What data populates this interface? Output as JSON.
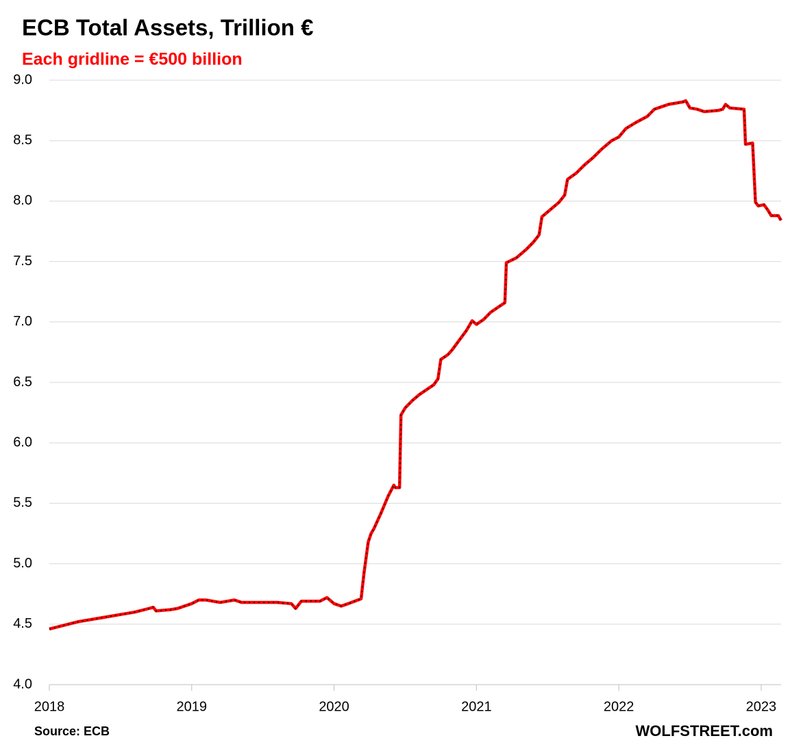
{
  "chart_data": {
    "type": "line",
    "title": "ECB Total Assets, Trillion €",
    "subtitle": "Each gridline = €500 billion",
    "source": "Source: ECB",
    "watermark": "WOLFSTREET.com",
    "x": [
      2018.0,
      2018.1,
      2018.2,
      2018.3,
      2018.4,
      2018.5,
      2018.6,
      2018.7,
      2018.73,
      2018.75,
      2018.85,
      2018.9,
      2019.0,
      2019.05,
      2019.1,
      2019.2,
      2019.3,
      2019.35,
      2019.5,
      2019.6,
      2019.7,
      2019.73,
      2019.77,
      2019.9,
      2019.95,
      2020.0,
      2020.05,
      2020.1,
      2020.19,
      2020.21,
      2020.24,
      2020.26,
      2020.28,
      2020.33,
      2020.38,
      2020.42,
      2020.43,
      2020.46,
      2020.47,
      2020.5,
      2020.55,
      2020.6,
      2020.7,
      2020.73,
      2020.75,
      2020.8,
      2020.83,
      2020.88,
      2020.93,
      2020.97,
      2021.0,
      2021.05,
      2021.1,
      2021.15,
      2021.2,
      2021.21,
      2021.28,
      2021.35,
      2021.4,
      2021.44,
      2021.46,
      2021.52,
      2021.58,
      2021.62,
      2021.64,
      2021.7,
      2021.76,
      2021.82,
      2021.88,
      2021.95,
      2022.0,
      2022.05,
      2022.12,
      2022.2,
      2022.25,
      2022.3,
      2022.35,
      2022.45,
      2022.47,
      2022.5,
      2022.55,
      2022.6,
      2022.7,
      2022.73,
      2022.75,
      2022.78,
      2022.88,
      2022.89,
      2022.94,
      2022.96,
      2022.98,
      2023.02,
      2023.05,
      2023.07,
      2023.12,
      2023.14
    ],
    "series": [
      {
        "color": "#ff0000",
        "values": [
          4.46,
          4.49,
          4.52,
          4.54,
          4.56,
          4.58,
          4.6,
          4.63,
          4.64,
          4.61,
          4.62,
          4.63,
          4.67,
          4.7,
          4.7,
          4.68,
          4.7,
          4.68,
          4.68,
          4.68,
          4.67,
          4.63,
          4.69,
          4.69,
          4.72,
          4.67,
          4.65,
          4.67,
          4.71,
          4.92,
          5.18,
          5.25,
          5.29,
          5.42,
          5.56,
          5.65,
          5.63,
          5.63,
          6.23,
          6.29,
          6.35,
          6.4,
          6.48,
          6.53,
          6.69,
          6.73,
          6.77,
          6.85,
          6.93,
          7.01,
          6.98,
          7.02,
          7.08,
          7.12,
          7.16,
          7.49,
          7.53,
          7.6,
          7.66,
          7.72,
          7.87,
          7.93,
          7.99,
          8.05,
          8.18,
          8.23,
          8.3,
          8.36,
          8.43,
          8.5,
          8.53,
          8.6,
          8.65,
          8.7,
          8.76,
          8.78,
          8.8,
          8.82,
          8.83,
          8.77,
          8.76,
          8.74,
          8.75,
          8.76,
          8.8,
          8.77,
          8.76,
          8.47,
          8.48,
          7.99,
          7.96,
          7.97,
          7.92,
          7.88,
          7.88,
          7.84
        ]
      }
    ],
    "xlim": [
      2018,
      2023.14
    ],
    "xticks": [
      2018,
      2019,
      2020,
      2021,
      2022,
      2023
    ],
    "ylim": [
      4,
      9
    ],
    "yticks": [
      {
        "value": 4,
        "label": "4.0"
      },
      {
        "value": 4.5,
        "label": "4.5"
      },
      {
        "value": 5,
        "label": "5.0"
      },
      {
        "value": 5.5,
        "label": "5.5"
      },
      {
        "value": 6,
        "label": "6.0"
      },
      {
        "value": 6.5,
        "label": "6.5"
      },
      {
        "value": 7,
        "label": "7.0"
      },
      {
        "value": 7.5,
        "label": "7.5"
      },
      {
        "value": 8,
        "label": "8.0"
      },
      {
        "value": 8.5,
        "label": "8.5"
      },
      {
        "value": 9,
        "label": "9.0"
      }
    ],
    "grid": true
  }
}
